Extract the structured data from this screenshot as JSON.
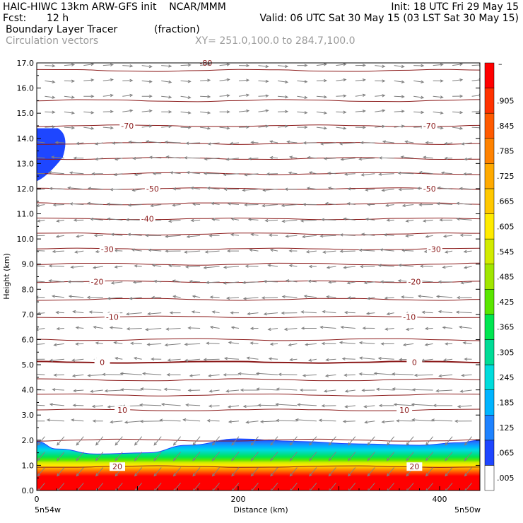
{
  "header": {
    "model_title": "HAIC-HIWC 13km ARW-GFS init    NCAR/MMM",
    "init": "Init: 18 UTC Fri 29 May 15",
    "fcst_label": "Fcst:",
    "fcst_value": "12 h",
    "valid": "Valid: 06 UTC Sat 30 May 15 (03 LST Sat 30 May 15)",
    "field_name": "Boundary Layer Tracer",
    "field_unit": "(fraction)",
    "vector_name": "Circulation vectors",
    "xy_range": "XY= 251.0,100.0 to 284.7,100.0"
  },
  "chart_data": {
    "type": "heatmap",
    "xlabel": "Distance (km)",
    "ylabel": "Height (km)",
    "xlim": [
      0,
      440
    ],
    "ylim": [
      0,
      17
    ],
    "x_ticks": [
      "0",
      "200",
      "400"
    ],
    "y_ticks": [
      "0.0",
      "1.0",
      "2.0",
      "3.0",
      "4.0",
      "5.0",
      "6.0",
      "7.0",
      "8.0",
      "9.0",
      "10.0",
      "11.0",
      "12.0",
      "13.0",
      "14.0",
      "15.0",
      "16.0",
      "17.0"
    ],
    "left_location": "5n54w",
    "right_location": "5n50w",
    "top_contour_label": "-80",
    "colorbar_top_label": "–",
    "colorbar_labels": [
      ".905",
      ".845",
      ".785",
      ".725",
      ".665",
      ".605",
      ".545",
      ".485",
      ".425",
      ".365",
      ".305",
      ".245",
      ".185",
      ".125",
      ".065",
      ".005"
    ],
    "colorbar_colors": [
      "#ffffff",
      "#1e46ff",
      "#1e82ff",
      "#00b4ff",
      "#00dcdc",
      "#00dc96",
      "#00e650",
      "#5ae600",
      "#a0e600",
      "#d2eb00",
      "#ffeb00",
      "#ffc800",
      "#ffaa00",
      "#ff8200",
      "#ff5a00",
      "#ff3200",
      "#ff0000"
    ],
    "contour_color": "#8b1a1a",
    "vector_color": "#808080",
    "temperature_contours": [
      {
        "label": "-70",
        "height_km": 14.5,
        "labels_at_km": [
          90,
          390
        ]
      },
      {
        "label": "-50",
        "height_km": 12.0,
        "labels_at_km": [
          115,
          390
        ]
      },
      {
        "label": "-40",
        "height_km": 10.8,
        "labels_at_km": [
          110
        ]
      },
      {
        "label": "-30",
        "height_km": 9.6,
        "labels_at_km": [
          70,
          395
        ]
      },
      {
        "label": "-20",
        "height_km": 8.3,
        "labels_at_km": [
          60,
          375
        ]
      },
      {
        "label": "-10",
        "height_km": 6.9,
        "labels_at_km": [
          75,
          370
        ]
      },
      {
        "label": "0",
        "height_km": 5.1,
        "labels_at_km": [
          65,
          375
        ]
      },
      {
        "label": "10",
        "height_km": 3.2,
        "labels_at_km": [
          85,
          365
        ]
      },
      {
        "label": "20",
        "height_km": 0.95,
        "labels_at_km": [
          80,
          375
        ]
      }
    ],
    "plain_contours_km": [
      16.7,
      15.5,
      13.8,
      13.2,
      12.6,
      11.4,
      10.2,
      9.0,
      7.6,
      6.0,
      4.4,
      3.8,
      2.0
    ],
    "boundary_layer_top_km": [
      [
        0,
        1.95
      ],
      [
        20,
        1.65
      ],
      [
        60,
        1.45
      ],
      [
        110,
        1.5
      ],
      [
        150,
        1.8
      ],
      [
        200,
        2.05
      ],
      [
        260,
        1.95
      ],
      [
        320,
        1.85
      ],
      [
        380,
        1.8
      ],
      [
        420,
        1.9
      ],
      [
        440,
        2.0
      ]
    ],
    "upper_tracer_patch": {
      "x_range_km": [
        0,
        30
      ],
      "height_range_km": [
        12.3,
        14.4
      ],
      "value": 0.065
    }
  }
}
